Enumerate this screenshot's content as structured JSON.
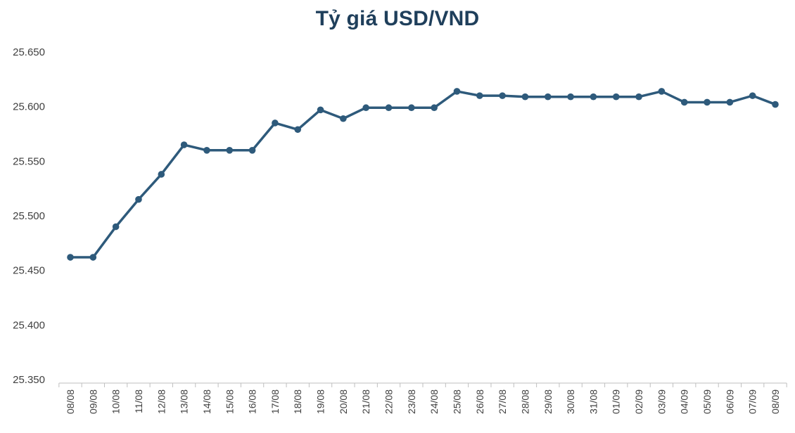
{
  "chart_data": {
    "type": "line",
    "title": "Tỷ giá USD/VND",
    "xlabel": "",
    "ylabel": "",
    "categories": [
      "08/08",
      "09/08",
      "10/08",
      "11/08",
      "12/08",
      "13/08",
      "14/08",
      "15/08",
      "16/08",
      "17/08",
      "18/08",
      "19/08",
      "20/08",
      "21/08",
      "22/08",
      "23/08",
      "24/08",
      "25/08",
      "26/08",
      "27/08",
      "28/08",
      "29/08",
      "30/08",
      "31/08",
      "01/09",
      "02/09",
      "03/09",
      "04/09",
      "05/09",
      "06/09",
      "07/09",
      "08/09"
    ],
    "series": [
      {
        "values": [
          25462,
          25462,
          25490,
          25515,
          25538,
          25565,
          25560,
          25560,
          25560,
          25585,
          25579,
          25597,
          25589,
          25599,
          25599,
          25599,
          25599,
          25614,
          25610,
          25610,
          25609,
          25609,
          25609,
          25609,
          25609,
          25609,
          25614,
          25604,
          25604,
          25604,
          25610,
          25602
        ]
      }
    ],
    "ylim": [
      25350,
      25650
    ],
    "yticks": [
      "25.350",
      "25.400",
      "25.450",
      "25.500",
      "25.550",
      "25.600",
      "25.650"
    ],
    "ytick_values": [
      25350,
      25400,
      25450,
      25500,
      25550,
      25600,
      25650
    ],
    "grid": false,
    "legend": "none",
    "colors": {
      "line": "#2e5a7b",
      "title": "#1f3f5b",
      "axis": "#bfbfbf"
    }
  }
}
